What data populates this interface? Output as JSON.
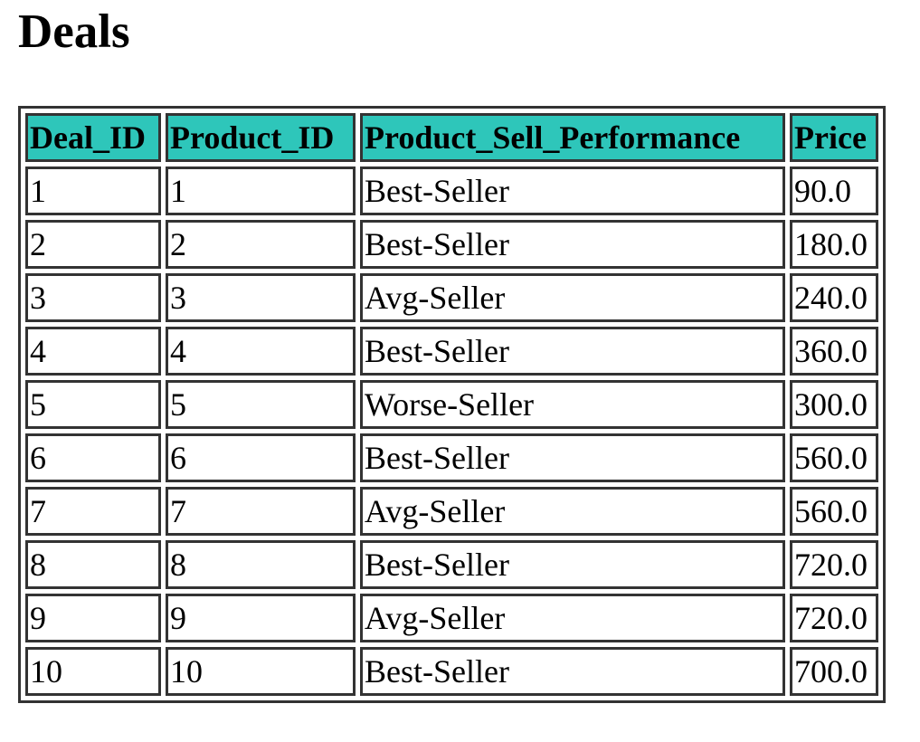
{
  "page": {
    "title": "Deals",
    "header_color": "#2ec6ba"
  },
  "table": {
    "columns": [
      "Deal_ID",
      "Product_ID",
      "Product_Sell_Performance",
      "Price"
    ],
    "rows": [
      [
        "1",
        "1",
        "Best-Seller",
        "90.0"
      ],
      [
        "2",
        "2",
        "Best-Seller",
        "180.0"
      ],
      [
        "3",
        "3",
        "Avg-Seller",
        "240.0"
      ],
      [
        "4",
        "4",
        "Best-Seller",
        "360.0"
      ],
      [
        "5",
        "5",
        "Worse-Seller",
        "300.0"
      ],
      [
        "6",
        "6",
        "Best-Seller",
        "560.0"
      ],
      [
        "7",
        "7",
        "Avg-Seller",
        "560.0"
      ],
      [
        "8",
        "8",
        "Best-Seller",
        "720.0"
      ],
      [
        "9",
        "9",
        "Avg-Seller",
        "720.0"
      ],
      [
        "10",
        "10",
        "Best-Seller",
        "700.0"
      ]
    ]
  }
}
